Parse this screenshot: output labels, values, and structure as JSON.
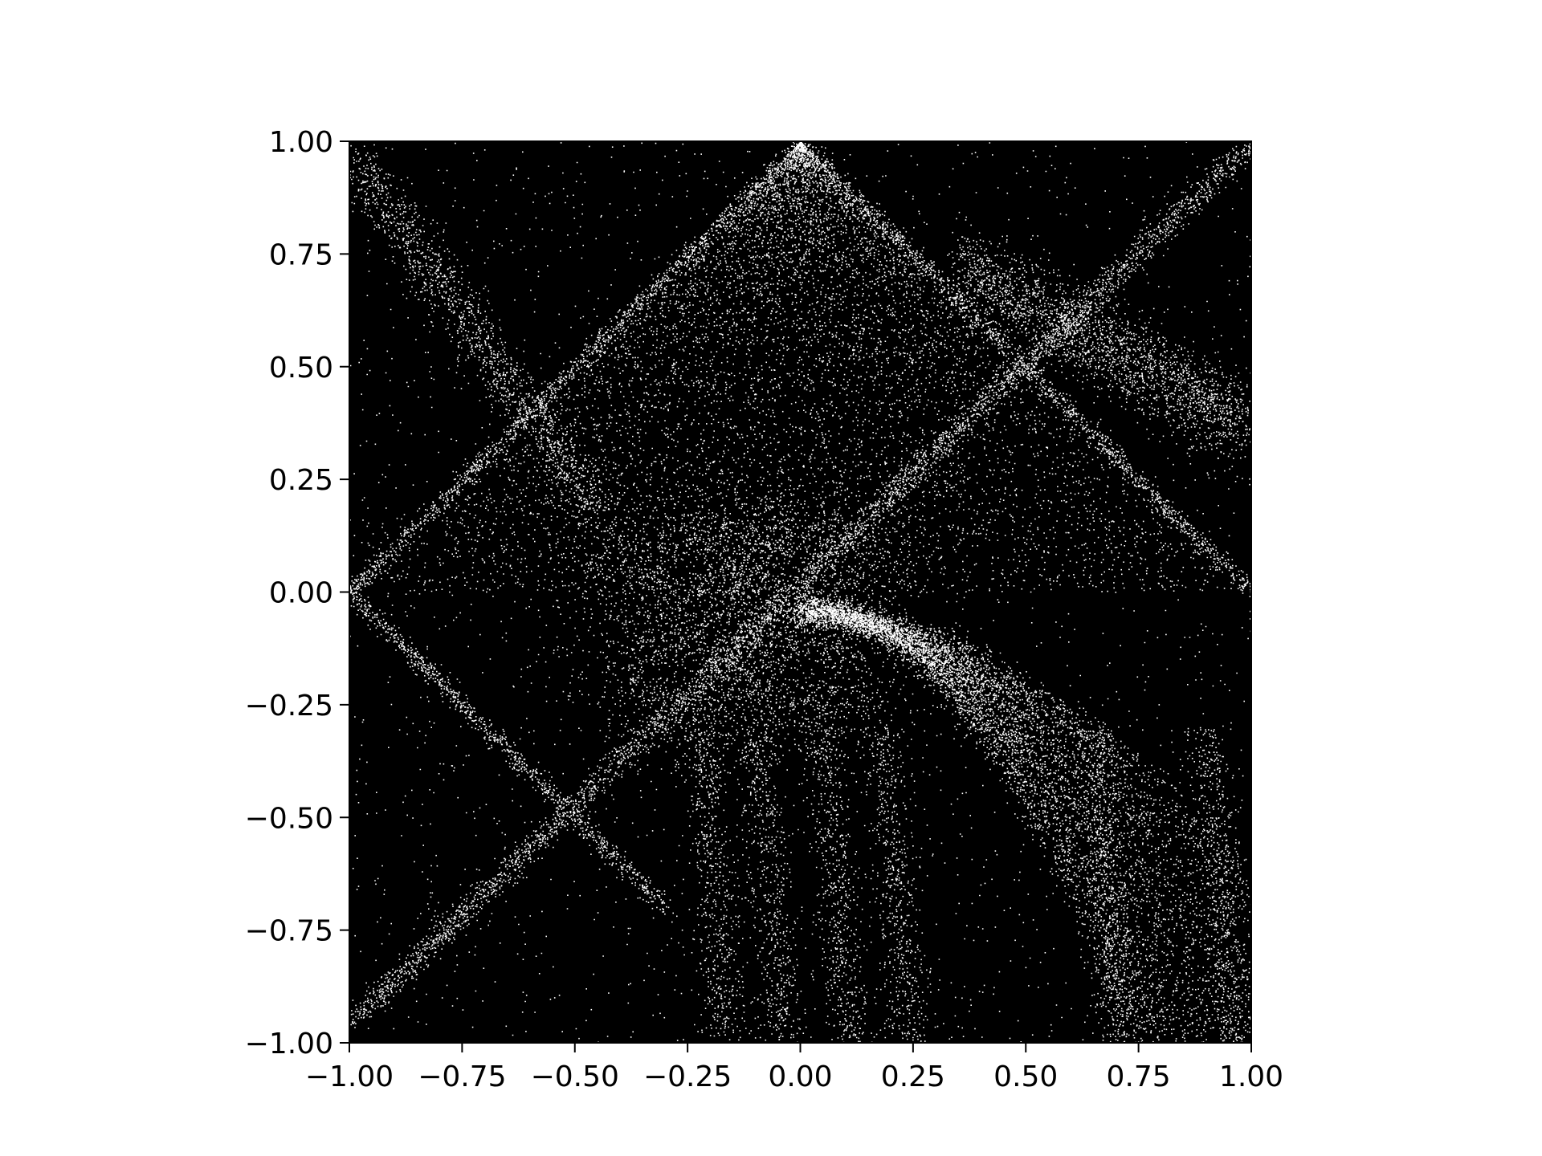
{
  "chart_data": {
    "type": "scatter",
    "title": "",
    "xlabel": "",
    "ylabel": "",
    "xlim": [
      -1.0,
      1.0
    ],
    "ylim": [
      -1.0,
      1.0
    ],
    "grid": false,
    "legend": "none",
    "background_color": "#000000",
    "point_color": "#ffffff",
    "x_ticks": [
      -1.0,
      -0.75,
      -0.5,
      -0.25,
      0.0,
      0.25,
      0.5,
      0.75,
      1.0
    ],
    "y_ticks": [
      -1.0,
      -0.75,
      -0.5,
      -0.25,
      0.0,
      0.25,
      0.5,
      0.75,
      1.0
    ],
    "x_tick_labels": [
      "−1.00",
      "−0.75",
      "−0.50",
      "−0.25",
      "0.00",
      "0.25",
      "0.50",
      "0.75",
      "1.00"
    ],
    "y_tick_labels": [
      "−1.00",
      "−0.75",
      "−0.50",
      "−0.25",
      "0.00",
      "0.25",
      "0.50",
      "0.75",
      "1.00"
    ],
    "features": {
      "triangle_apex": [
        0.0,
        1.0
      ],
      "triangle_base": [
        [
          -1.0,
          0.0
        ],
        [
          1.0,
          0.0
        ]
      ],
      "diagonal_band": [
        [
          -1.0,
          -0.96
        ],
        [
          1.0,
          1.0
        ]
      ],
      "swirl_center": [
        0.0,
        -0.2
      ]
    }
  }
}
